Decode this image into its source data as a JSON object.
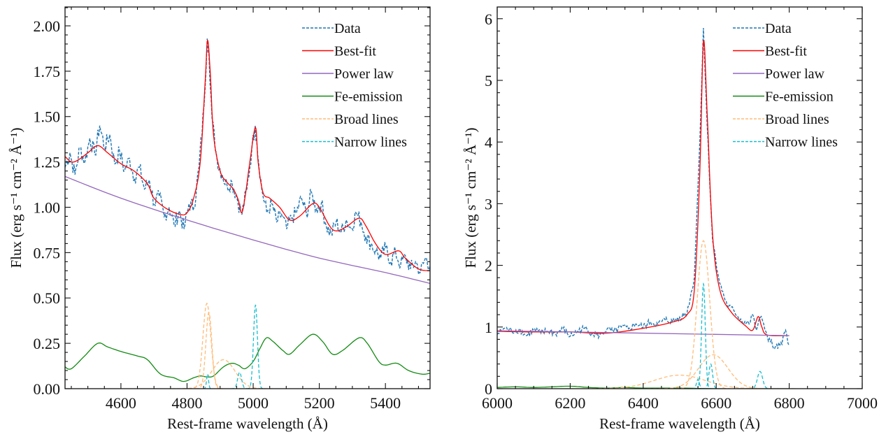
{
  "chart_data": [
    {
      "type": "line",
      "panel": "left",
      "xlabel": "Rest-frame wavelength (Å)",
      "ylabel": "Flux (erg s⁻¹ cm⁻² Å⁻¹)",
      "xlim": [
        4431,
        5535
      ],
      "ylim": [
        0,
        2.104
      ],
      "xticks": [
        4600,
        4800,
        5000,
        5200,
        5400
      ],
      "xtick_labels": [
        "4600",
        "4800",
        "5000",
        "5200",
        "5400"
      ],
      "xminor": 50,
      "yticks": [
        0,
        0.25,
        0.5,
        0.75,
        1.0,
        1.25,
        1.5,
        1.75,
        2.0
      ],
      "ytick_labels": [
        "0.00",
        "0.25",
        "0.50",
        "0.75",
        "1.00",
        "1.25",
        "1.50",
        "1.75",
        "2.00"
      ],
      "yminor": 0.05,
      "legend_position": "top-right",
      "legend": [
        "Data",
        "Best-fit",
        "Power law",
        "Fe-emission",
        "Broad lines",
        "Narrow lines"
      ],
      "series": [
        {
          "name": "Data",
          "style": "dashed",
          "color": "#1f77b4",
          "x": [
            4431,
            4446,
            4461,
            4476,
            4491,
            4506,
            4521,
            4536,
            4551,
            4566,
            4581,
            4596,
            4611,
            4626,
            4641,
            4656,
            4671,
            4686,
            4701,
            4716,
            4731,
            4746,
            4761,
            4776,
            4791,
            4806,
            4821,
            4836,
            4851,
            4861,
            4866,
            4876,
            4891,
            4906,
            4921,
            4936,
            4951,
            4966,
            4981,
            4996,
            5006,
            5011,
            5026,
            5041,
            5056,
            5071,
            5086,
            5101,
            5116,
            5131,
            5146,
            5161,
            5176,
            5191,
            5206,
            5221,
            5236,
            5251,
            5266,
            5281,
            5296,
            5311,
            5326,
            5341,
            5356,
            5371,
            5386,
            5401,
            5416,
            5431,
            5446,
            5461,
            5476,
            5491,
            5506,
            5521,
            5535
          ],
          "y": [
            1.22,
            1.3,
            1.18,
            1.33,
            1.25,
            1.38,
            1.29,
            1.45,
            1.33,
            1.4,
            1.24,
            1.31,
            1.2,
            1.27,
            1.16,
            1.22,
            1.1,
            1.15,
            1.02,
            1.06,
            0.95,
            1.0,
            0.9,
            0.98,
            0.88,
            1.02,
            1.0,
            1.22,
            1.55,
            1.93,
            1.85,
            1.48,
            1.26,
            1.18,
            1.12,
            1.14,
            1.05,
            0.96,
            1.1,
            1.32,
            1.45,
            1.36,
            1.1,
            0.97,
            1.02,
            0.92,
            0.96,
            0.88,
            0.94,
            0.97,
            1.05,
            0.96,
            1.08,
            0.99,
            1.02,
            0.9,
            0.85,
            0.92,
            0.86,
            0.93,
            0.88,
            0.97,
            0.92,
            0.84,
            0.8,
            0.76,
            0.72,
            0.78,
            0.7,
            0.75,
            0.68,
            0.73,
            0.66,
            0.7,
            0.64,
            0.72,
            0.68
          ]
        },
        {
          "name": "Best-fit",
          "style": "solid",
          "color": "#ff0000",
          "x": [
            4431,
            4450,
            4470,
            4500,
            4530,
            4560,
            4600,
            4640,
            4680,
            4700,
            4740,
            4780,
            4800,
            4820,
            4840,
            4855,
            4862,
            4870,
            4880,
            4900,
            4920,
            4940,
            4955,
            4965,
            4975,
            4990,
            5007,
            5015,
            5030,
            5050,
            5080,
            5110,
            5140,
            5180,
            5200,
            5230,
            5250,
            5280,
            5320,
            5340,
            5370,
            5400,
            5440,
            5460,
            5500,
            5535
          ],
          "y": [
            1.28,
            1.25,
            1.26,
            1.3,
            1.34,
            1.3,
            1.24,
            1.2,
            1.13,
            1.05,
            0.99,
            0.96,
            0.97,
            1.05,
            1.25,
            1.7,
            1.92,
            1.75,
            1.4,
            1.2,
            1.14,
            1.1,
            1.04,
            0.97,
            1.05,
            1.25,
            1.44,
            1.25,
            1.08,
            1.05,
            1.0,
            0.93,
            0.95,
            1.02,
            1.0,
            0.9,
            0.87,
            0.89,
            0.94,
            0.9,
            0.8,
            0.74,
            0.76,
            0.72,
            0.66,
            0.65
          ]
        },
        {
          "name": "Power law",
          "style": "solid",
          "color": "#9467bd",
          "x": [
            4431,
            4600,
            4800,
            5000,
            5200,
            5400,
            5535
          ],
          "y": [
            1.17,
            1.05,
            0.93,
            0.82,
            0.72,
            0.64,
            0.58
          ]
        },
        {
          "name": "Fe-emission",
          "style": "solid",
          "color": "#138a13",
          "x": [
            4431,
            4450,
            4490,
            4530,
            4560,
            4600,
            4650,
            4680,
            4720,
            4760,
            4790,
            4820,
            4840,
            4860,
            4880,
            4910,
            4935,
            4955,
            4975,
            5000,
            5020,
            5040,
            5060,
            5090,
            5110,
            5140,
            5180,
            5210,
            5240,
            5270,
            5320,
            5345,
            5380,
            5400,
            5435,
            5470,
            5510,
            5535
          ],
          "y": [
            0.12,
            0.11,
            0.18,
            0.25,
            0.23,
            0.205,
            0.18,
            0.16,
            0.08,
            0.06,
            0.04,
            0.06,
            0.07,
            0.065,
            0.07,
            0.12,
            0.14,
            0.13,
            0.11,
            0.15,
            0.22,
            0.28,
            0.26,
            0.21,
            0.19,
            0.24,
            0.3,
            0.26,
            0.19,
            0.21,
            0.28,
            0.25,
            0.15,
            0.13,
            0.14,
            0.1,
            0.08,
            0.085
          ]
        },
        {
          "name": "Broad lines",
          "style": "dashed",
          "color": "#ffbb78",
          "gaussians": [
            {
              "center": 4860,
              "amplitude": 0.47,
              "sigma": 12
            },
            {
              "center": 4866,
              "amplitude": 0.42,
              "sigma": 9
            },
            {
              "center": 4910,
              "amplitude": 0.16,
              "sigma": 35
            }
          ]
        },
        {
          "name": "Narrow lines",
          "style": "dashed",
          "color": "#17becf",
          "gaussians": [
            {
              "center": 4862,
              "amplitude": 0.08,
              "sigma": 3
            },
            {
              "center": 4959,
              "amplitude": 0.09,
              "sigma": 6
            },
            {
              "center": 5007,
              "amplitude": 0.46,
              "sigma": 6
            }
          ]
        }
      ]
    },
    {
      "type": "line",
      "panel": "right",
      "xlabel": "Rest-frame wavelength (Å)",
      "ylabel": "Flux (erg s⁻¹ cm⁻² Å⁻¹)",
      "xlim": [
        6000,
        7000
      ],
      "ylim": [
        0,
        6.19
      ],
      "xticks": [
        6000,
        6200,
        6400,
        6600,
        6800,
        7000
      ],
      "xtick_labels": [
        "6000",
        "6200",
        "6400",
        "6600",
        "6800",
        "7000"
      ],
      "xminor": 50,
      "yticks": [
        0,
        1,
        2,
        3,
        4,
        5,
        6
      ],
      "ytick_labels": [
        "0",
        "1",
        "2",
        "3",
        "4",
        "5",
        "6"
      ],
      "yminor": 0.2,
      "legend_position": "top-right",
      "legend": [
        "Data",
        "Best-fit",
        "Power law",
        "Fe-emission",
        "Broad lines",
        "Narrow lines"
      ],
      "series": [
        {
          "name": "Data",
          "style": "dashed",
          "color": "#1f77b4",
          "x": [
            6000,
            6020,
            6040,
            6060,
            6080,
            6100,
            6120,
            6140,
            6160,
            6180,
            6200,
            6220,
            6240,
            6260,
            6280,
            6300,
            6320,
            6340,
            6360,
            6380,
            6400,
            6420,
            6440,
            6460,
            6480,
            6500,
            6520,
            6540,
            6555,
            6565,
            6575,
            6590,
            6610,
            6630,
            6650,
            6670,
            6690,
            6700,
            6710,
            6720,
            6730,
            6740,
            6760,
            6780,
            6790,
            6800
          ],
          "y": [
            0.88,
            0.98,
            0.93,
            0.96,
            0.86,
            0.95,
            0.9,
            0.94,
            0.89,
            0.97,
            0.85,
            0.93,
            0.98,
            0.9,
            0.86,
            0.96,
            0.92,
            1.0,
            0.97,
            1.05,
            1.0,
            1.08,
            1.04,
            1.12,
            1.08,
            1.16,
            1.22,
            1.8,
            4.0,
            5.85,
            4.3,
            2.4,
            1.7,
            1.35,
            1.25,
            1.1,
            1.05,
            1.2,
            0.95,
            1.15,
            1.05,
            0.85,
            0.65,
            0.72,
            0.95,
            0.7
          ]
        },
        {
          "name": "Best-fit",
          "style": "solid",
          "color": "#ff0000",
          "x": [
            6000,
            6100,
            6200,
            6300,
            6400,
            6480,
            6520,
            6540,
            6555,
            6565,
            6575,
            6590,
            6610,
            6640,
            6680,
            6700,
            6715,
            6725,
            6740,
            6800
          ],
          "y": [
            0.93,
            0.92,
            0.92,
            0.9,
            0.98,
            1.08,
            1.2,
            1.6,
            3.5,
            5.63,
            4.5,
            2.5,
            1.6,
            1.25,
            1.02,
            0.95,
            1.17,
            1.0,
            0.87,
            0.86
          ]
        },
        {
          "name": "Power law",
          "style": "solid",
          "color": "#9467bd",
          "x": [
            6000,
            6800
          ],
          "y": [
            0.94,
            0.86
          ]
        },
        {
          "name": "Fe-emission",
          "style": "solid",
          "color": "#138a13",
          "x": [
            6000,
            6050,
            6100,
            6150,
            6200,
            6250,
            6300,
            6350,
            6400,
            6500,
            6600,
            6700,
            6800
          ],
          "y": [
            0.02,
            0.03,
            0.02,
            0.03,
            0.04,
            0.02,
            0.01,
            0.02,
            0.01,
            0.01,
            0.0,
            0.0,
            0.0
          ]
        },
        {
          "name": "Broad lines",
          "style": "dashed",
          "color": "#ffbb78",
          "gaussians": [
            {
              "center": 6565,
              "amplitude": 2.4,
              "sigma": 17
            },
            {
              "center": 6592,
              "amplitude": 0.55,
              "sigma": 40
            },
            {
              "center": 6500,
              "amplitude": 0.22,
              "sigma": 70
            }
          ]
        },
        {
          "name": "Narrow lines",
          "style": "dashed",
          "color": "#17becf",
          "gaussians": [
            {
              "center": 6565,
              "amplitude": 1.7,
              "sigma": 5
            },
            {
              "center": 6550,
              "amplitude": 0.15,
              "sigma": 4
            },
            {
              "center": 6585,
              "amplitude": 0.4,
              "sigma": 5
            },
            {
              "center": 6720,
              "amplitude": 0.28,
              "sigma": 7
            }
          ]
        }
      ]
    }
  ]
}
